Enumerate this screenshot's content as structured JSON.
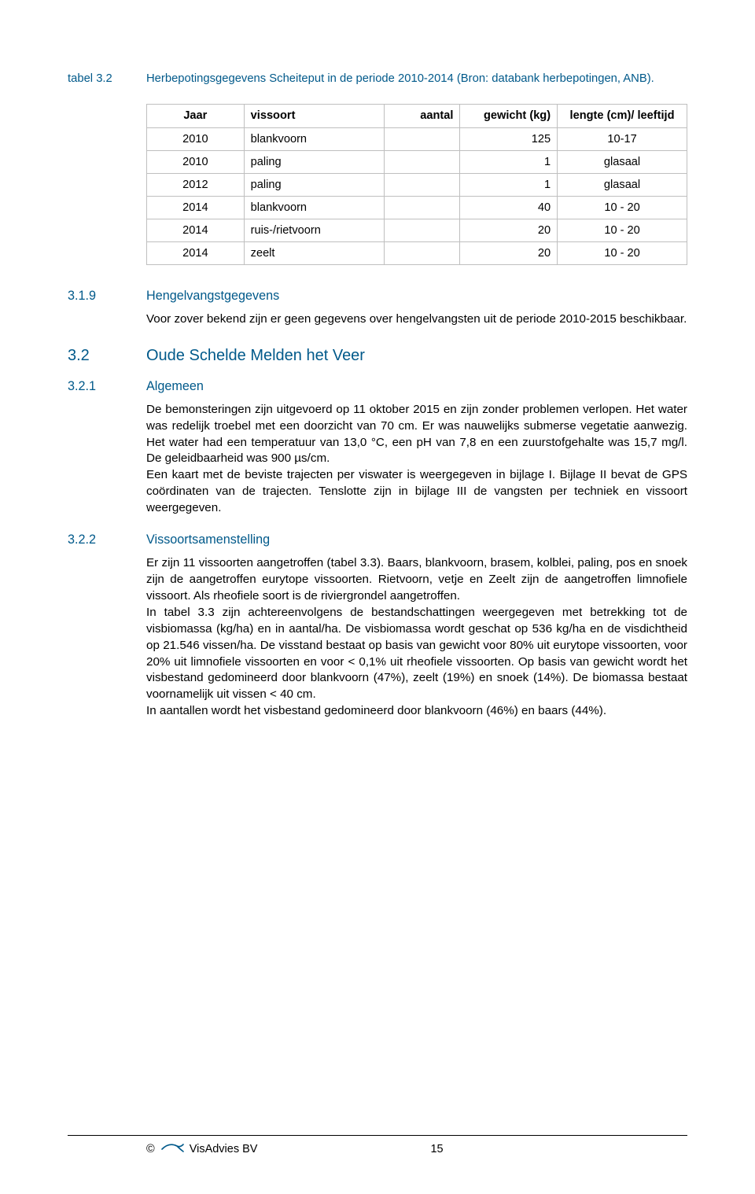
{
  "caption": {
    "label": "tabel 3.2",
    "text": "Herbepotingsgegevens Scheiteput in de periode 2010-2014 (Bron: databank herbepotingen, ANB)."
  },
  "table": {
    "columns": [
      "Jaar",
      "vissoort",
      "aantal",
      "gewicht (kg)",
      "lengte (cm)/ leeftijd"
    ],
    "rows": [
      [
        "2010",
        "blankvoorn",
        "",
        "125",
        "10-17"
      ],
      [
        "2010",
        "paling",
        "",
        "1",
        "glasaal"
      ],
      [
        "2012",
        "paling",
        "",
        "1",
        "glasaal"
      ],
      [
        "2014",
        "blankvoorn",
        "",
        "40",
        "10 - 20"
      ],
      [
        "2014",
        "ruis-/rietvoorn",
        "",
        "20",
        "10 - 20"
      ],
      [
        "2014",
        "zeelt",
        "",
        "20",
        "10 - 20"
      ]
    ]
  },
  "sections": {
    "s319": {
      "num": "3.1.9",
      "title": "Hengelvangstgegevens",
      "body": "Voor zover bekend zijn er geen gegevens over hengelvangsten uit de periode 2010-2015 beschikbaar."
    },
    "s32": {
      "num": "3.2",
      "title": "Oude Schelde Melden het Veer"
    },
    "s321": {
      "num": "3.2.1",
      "title": "Algemeen",
      "p1": "De bemonsteringen zijn uitgevoerd op 11 oktober 2015 en zijn zonder problemen verlopen. Het water was redelijk troebel met een doorzicht van 70 cm. Er was nauwelijks submerse vegetatie aanwezig. Het water had een temperatuur van 13,0 °C, een pH van 7,8 en een zuurstofgehalte was 15,7 mg/l. De geleidbaarheid was 900 µs/cm.",
      "p2": "Een kaart met de beviste trajecten per viswater is weergegeven in bijlage I. Bijlage II bevat de GPS coördinaten van de trajecten. Tenslotte zijn in bijlage III de vangsten per techniek en vissoort weergegeven."
    },
    "s322": {
      "num": "3.2.2",
      "title": "Vissoortsamenstelling",
      "p1": "Er zijn 11 vissoorten aangetroffen (tabel 3.3). Baars, blankvoorn, brasem, kolblei, paling, pos en snoek zijn de aangetroffen eurytope vissoorten. Rietvoorn, vetje en Zeelt zijn de aangetroffen limnofiele vissoort. Als rheofiele soort is de riviergrondel aangetroffen.",
      "p2": "In tabel 3.3 zijn achtereenvolgens de bestandschattingen weergegeven met betrekking tot de visbiomassa (kg/ha) en in aantal/ha. De visbiomassa wordt geschat op 536 kg/ha en de visdichtheid op 21.546 vissen/ha. De visstand bestaat op basis van gewicht voor 80% uit eurytope vissoorten, voor 20% uit limnofiele vissoorten en voor < 0,1% uit rheofiele vissoorten. Op basis van gewicht wordt het visbestand gedomineerd door blankvoorn (47%), zeelt (19%) en snoek (14%). De biomassa bestaat voornamelijk uit vissen < 40 cm.",
      "p3": "In aantallen wordt het visbestand gedomineerd door blankvoorn (46%) en baars (44%)."
    }
  },
  "footer": {
    "copyright": "©",
    "company": "VisAdvies BV",
    "page": "15",
    "logo_color": "#00598a"
  }
}
